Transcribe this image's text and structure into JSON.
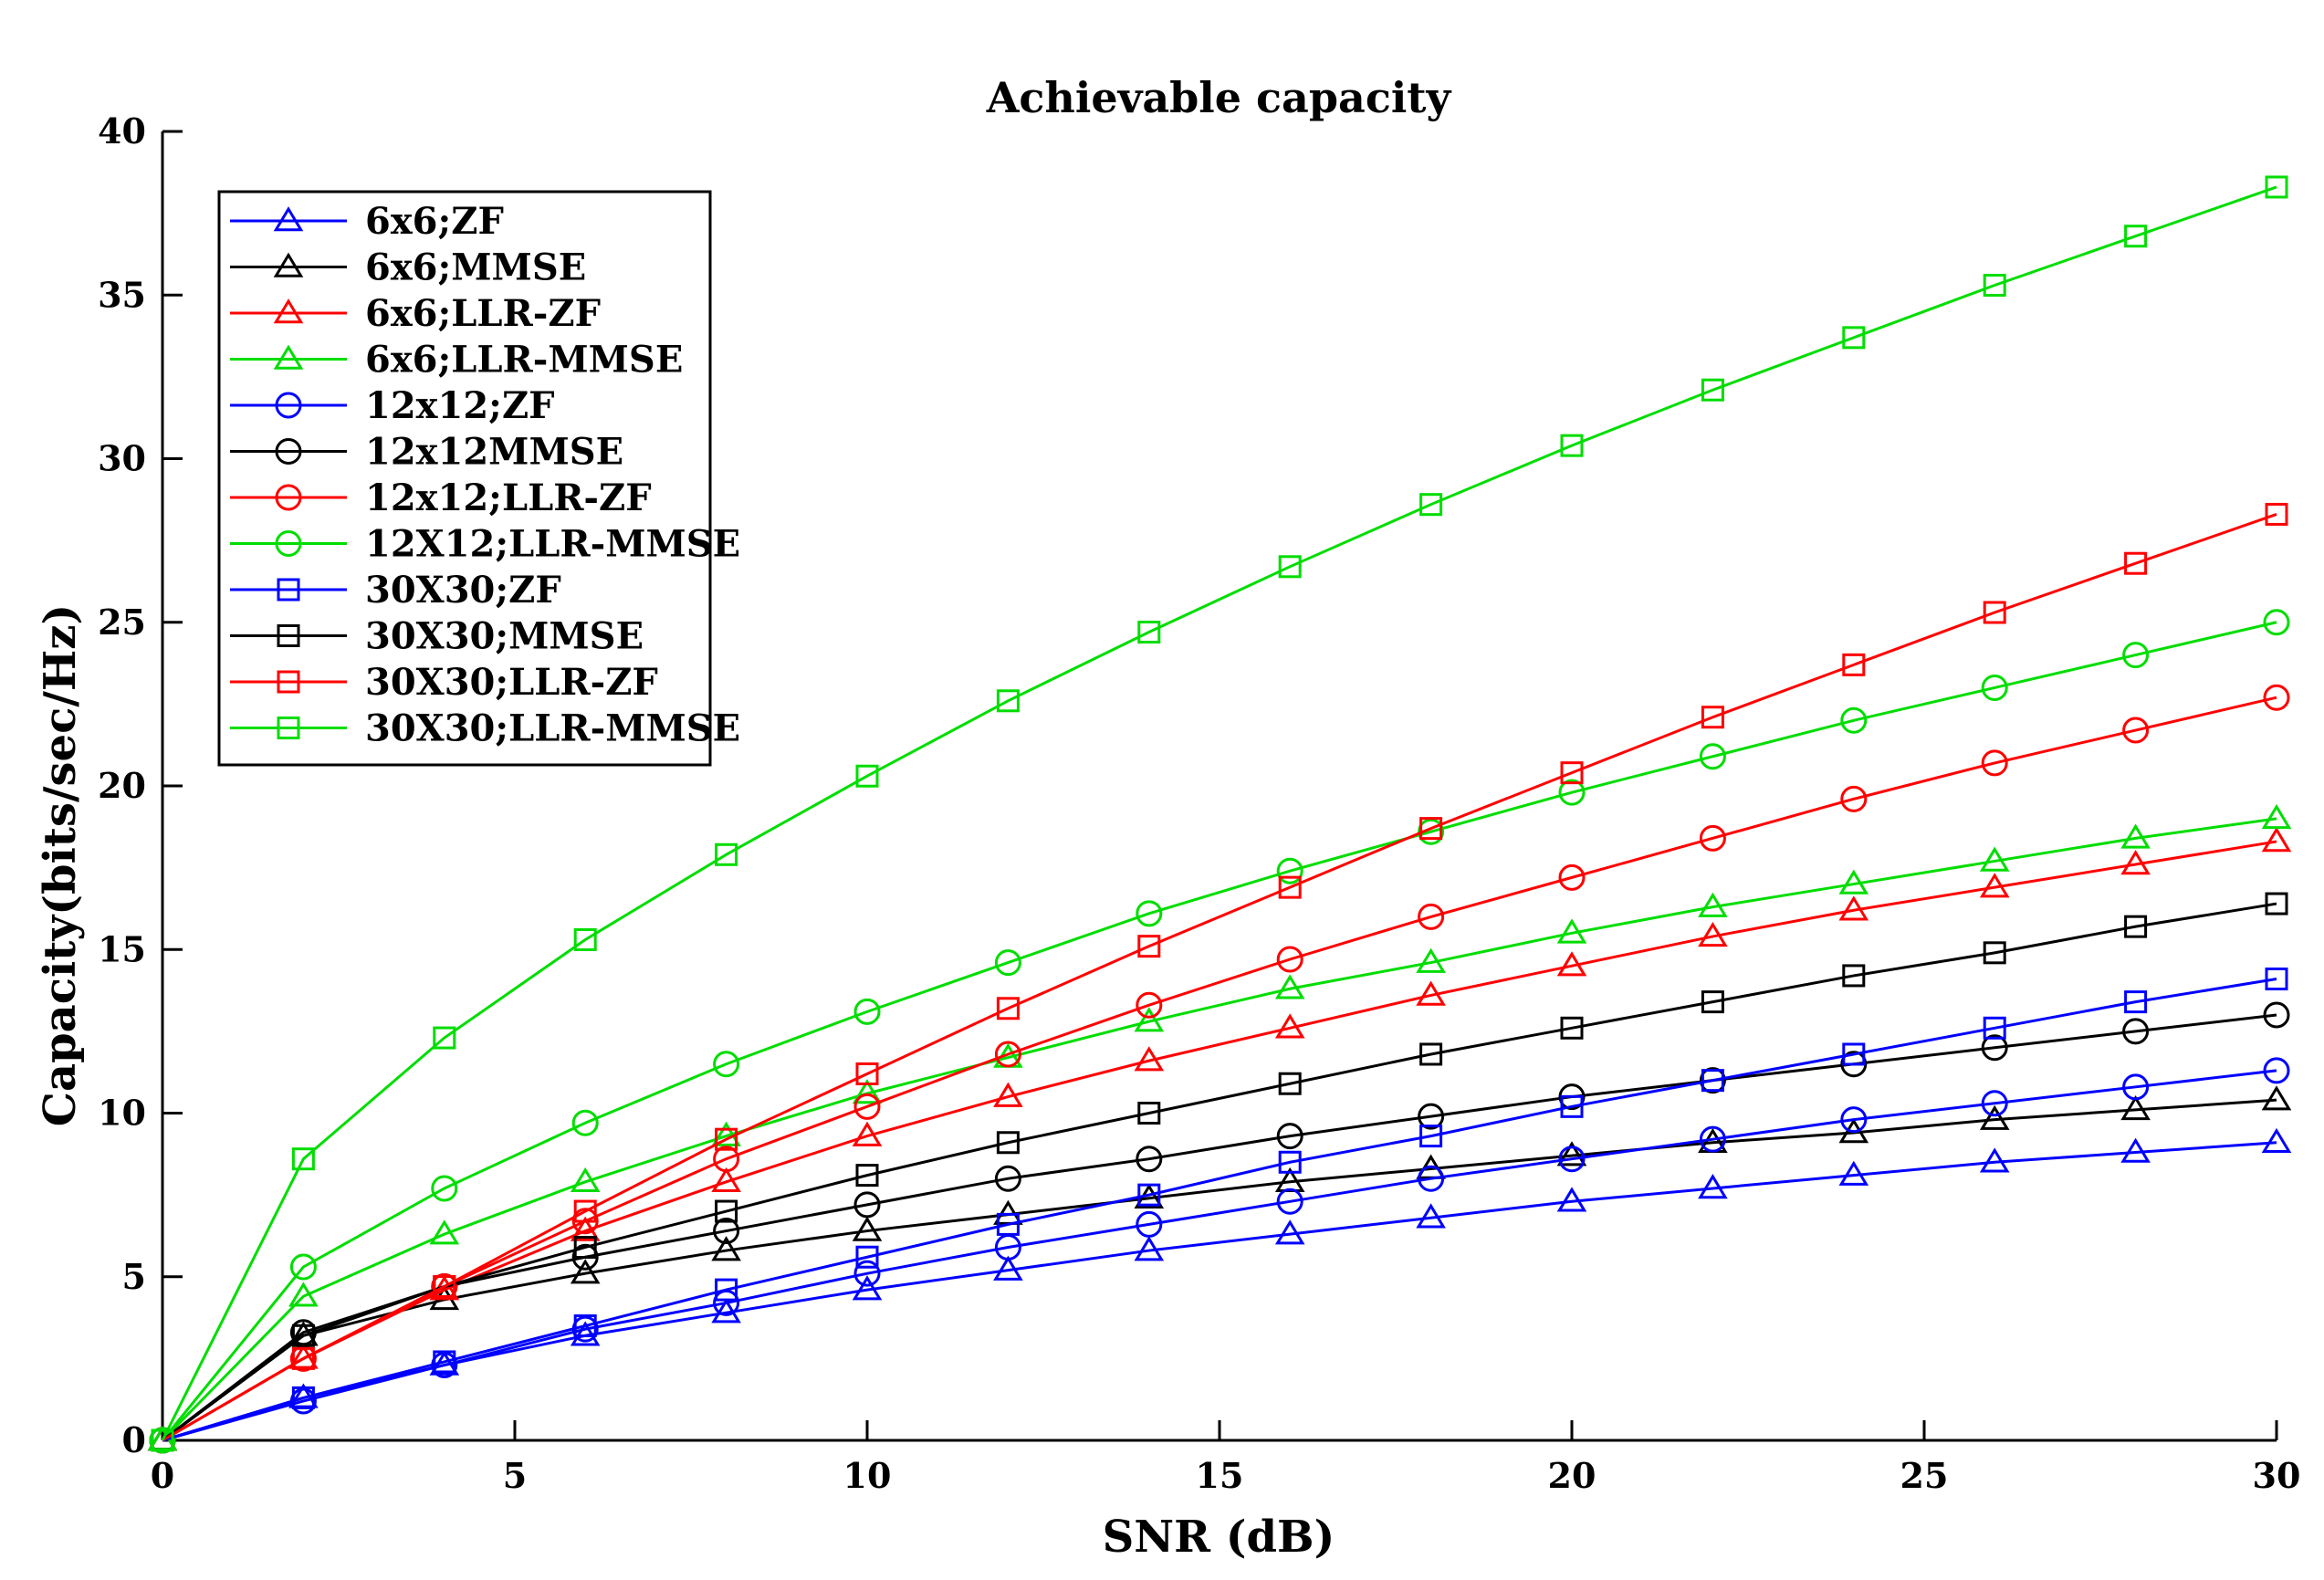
{
  "chart_data": {
    "type": "line",
    "title": "Achievable capacity",
    "xlabel": "SNR (dB)",
    "ylabel": "Capacity(bits/sec/Hz)",
    "xlim": [
      0,
      30
    ],
    "ylim": [
      0,
      40
    ],
    "xticks": [
      "0",
      "5",
      "10",
      "15",
      "20",
      "25",
      "30"
    ],
    "yticks": [
      "0",
      "5",
      "10",
      "15",
      "20",
      "25",
      "30",
      "35",
      "40"
    ],
    "grid": false,
    "legend_position": "top-left",
    "x": [
      0,
      2,
      4,
      6,
      8,
      10,
      12,
      14,
      16,
      18,
      20,
      22,
      24,
      26,
      28,
      30
    ],
    "series": [
      {
        "name": "6x6;ZF",
        "color": "#0000ff",
        "marker": "triangle",
        "values": [
          0,
          1.3,
          2.3,
          3.2,
          3.9,
          4.6,
          5.2,
          5.8,
          6.3,
          6.8,
          7.3,
          7.7,
          8.1,
          8.5,
          8.8,
          9.1
        ]
      },
      {
        "name": "6x6;MMSE",
        "color": "#000000",
        "marker": "triangle",
        "values": [
          0,
          3.2,
          4.3,
          5.1,
          5.8,
          6.4,
          6.9,
          7.4,
          7.9,
          8.3,
          8.7,
          9.1,
          9.4,
          9.8,
          10.1,
          10.4
        ]
      },
      {
        "name": "6x6;LLR-ZF",
        "color": "#ff0000",
        "marker": "triangle",
        "values": [
          0,
          2.5,
          4.6,
          6.4,
          7.9,
          9.3,
          10.5,
          11.6,
          12.6,
          13.6,
          14.5,
          15.4,
          16.2,
          16.9,
          17.6,
          18.3
        ]
      },
      {
        "name": "6x6;LLR-MMSE",
        "color": "#00dd00",
        "marker": "triangle",
        "values": [
          0,
          4.4,
          6.3,
          7.9,
          9.3,
          10.6,
          11.7,
          12.8,
          13.8,
          14.6,
          15.5,
          16.3,
          17.0,
          17.7,
          18.4,
          19.0
        ]
      },
      {
        "name": "12x12;ZF",
        "color": "#0000ff",
        "marker": "circle",
        "values": [
          0,
          1.2,
          2.3,
          3.4,
          4.2,
          5.1,
          5.9,
          6.6,
          7.3,
          8.0,
          8.6,
          9.2,
          9.8,
          10.3,
          10.8,
          11.3
        ]
      },
      {
        "name": "12x12MMSE",
        "color": "#000000",
        "marker": "circle",
        "values": [
          0,
          3.3,
          4.7,
          5.6,
          6.4,
          7.2,
          8.0,
          8.6,
          9.3,
          9.9,
          10.5,
          11.0,
          11.5,
          12.0,
          12.5,
          13.0
        ]
      },
      {
        "name": "12x12;LLR-ZF",
        "color": "#ff0000",
        "marker": "circle",
        "values": [
          0,
          2.5,
          4.7,
          6.7,
          8.6,
          10.2,
          11.8,
          13.3,
          14.7,
          16.0,
          17.2,
          18.4,
          19.6,
          20.7,
          21.7,
          22.7
        ]
      },
      {
        "name": "12X12;LLR-MMSE",
        "color": "#00dd00",
        "marker": "circle",
        "values": [
          0,
          5.3,
          7.7,
          9.7,
          11.5,
          13.1,
          14.6,
          16.1,
          17.4,
          18.6,
          19.8,
          20.9,
          22.0,
          23.0,
          24.0,
          25.0
        ]
      },
      {
        "name": "30X30;ZF",
        "color": "#0000ff",
        "marker": "square",
        "values": [
          0,
          1.3,
          2.4,
          3.5,
          4.6,
          5.6,
          6.6,
          7.5,
          8.5,
          9.3,
          10.2,
          11.0,
          11.8,
          12.6,
          13.4,
          14.1
        ]
      },
      {
        "name": "30X30;MMSE",
        "color": "#000000",
        "marker": "square",
        "values": [
          0,
          3.2,
          4.7,
          5.9,
          7.0,
          8.1,
          9.1,
          10.0,
          10.9,
          11.8,
          12.6,
          13.4,
          14.2,
          14.9,
          15.7,
          16.4
        ]
      },
      {
        "name": "30X30;LLR-ZF",
        "color": "#ff0000",
        "marker": "square",
        "values": [
          0,
          2.5,
          4.7,
          7.0,
          9.2,
          11.2,
          13.2,
          15.1,
          16.9,
          18.7,
          20.4,
          22.1,
          23.7,
          25.3,
          26.8,
          28.3
        ]
      },
      {
        "name": "30X30;LLR-MMSE",
        "color": "#00dd00",
        "marker": "square",
        "values": [
          0,
          8.6,
          12.3,
          15.3,
          17.9,
          20.3,
          22.6,
          24.7,
          26.7,
          28.6,
          30.4,
          32.1,
          33.7,
          35.3,
          36.8,
          38.3
        ]
      }
    ]
  }
}
